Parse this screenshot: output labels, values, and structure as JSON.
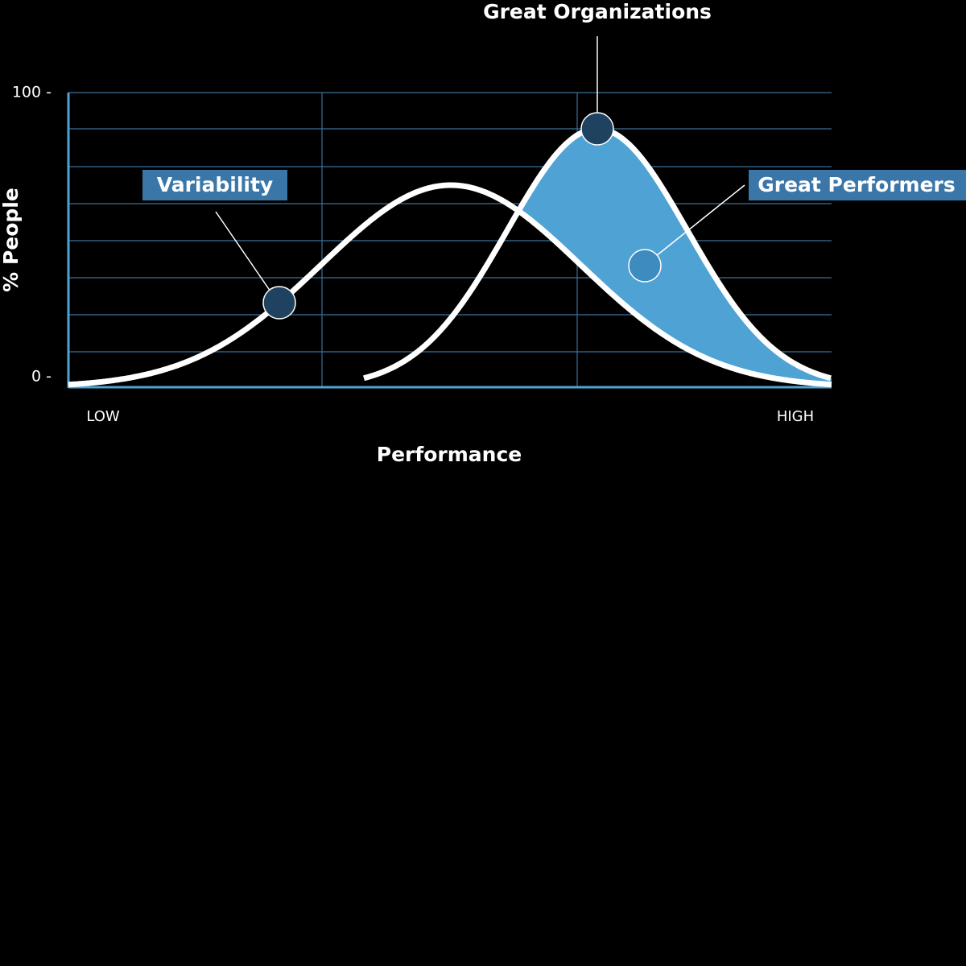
{
  "title": "Great Organizations",
  "y_axis": {
    "label": "% People",
    "ticks": [
      "100 -",
      "0 -"
    ]
  },
  "x_axis": {
    "label": "Performance",
    "low": "LOW",
    "high": "HIGH"
  },
  "annotations": [
    "Variability",
    "Great Performers"
  ]
}
